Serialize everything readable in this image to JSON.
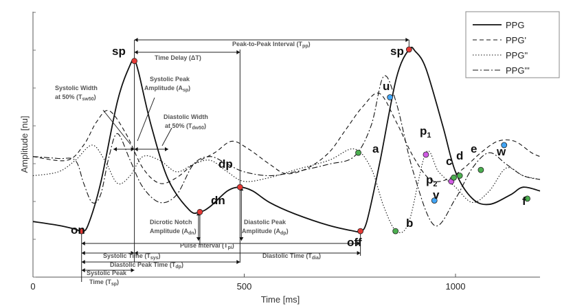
{
  "chart_data": {
    "type": "line",
    "xlabel": "Time [ms]",
    "ylabel": "Amplitude [nu]",
    "xlim": [
      0,
      1200
    ],
    "xticks": [
      "0",
      "500",
      "1000"
    ],
    "legend": {
      "placement": "top-right",
      "entries": [
        "PPG",
        "PPG'",
        "PPG\"",
        "PPG'''"
      ]
    },
    "series": [
      {
        "name": "PPG",
        "style": "solid",
        "x": [
          0,
          60,
          100,
          115,
          130,
          160,
          200,
          230,
          240,
          250,
          280,
          320,
          370,
          395,
          420,
          460,
          490,
          520,
          560,
          620,
          700,
          760,
          775,
          790,
          820,
          860,
          890,
          905,
          930,
          970,
          1000,
          1040,
          1080,
          1130,
          1160,
          1200
        ],
        "y": [
          0.1,
          0.08,
          0.06,
          0.05,
          0.08,
          0.3,
          0.73,
          0.92,
          0.94,
          0.88,
          0.6,
          0.32,
          0.16,
          0.15,
          0.18,
          0.26,
          0.28,
          0.26,
          0.2,
          0.14,
          0.08,
          0.05,
          0.05,
          0.1,
          0.4,
          0.85,
          1.0,
          0.99,
          0.9,
          0.6,
          0.36,
          0.22,
          0.19,
          0.24,
          0.28,
          0.26
        ]
      },
      {
        "name": "PPG'",
        "style": "dashed",
        "x": [
          0,
          80,
          120,
          150,
          180,
          220,
          260,
          300,
          340,
          380,
          430,
          470,
          510,
          560,
          600,
          650,
          700,
          740,
          780,
          820,
          860,
          900,
          940,
          980,
          1020,
          1060,
          1100,
          1140,
          1180,
          1200
        ],
        "y": [
          0.44,
          0.42,
          0.5,
          0.62,
          0.68,
          0.56,
          0.38,
          0.3,
          0.33,
          0.4,
          0.46,
          0.52,
          0.48,
          0.4,
          0.35,
          0.38,
          0.46,
          0.58,
          0.7,
          0.77,
          0.62,
          0.44,
          0.32,
          0.32,
          0.38,
          0.46,
          0.52,
          0.52,
          0.46,
          0.44
        ]
      },
      {
        "name": "PPG\"",
        "style": "dotted",
        "x": [
          0,
          60,
          100,
          140,
          170,
          200,
          230,
          260,
          300,
          340,
          380,
          420,
          460,
          500,
          560,
          620,
          700,
          760,
          800,
          830,
          860,
          890,
          930,
          960,
          1000,
          1040,
          1080,
          1120,
          1160,
          1200
        ],
        "y": [
          0.34,
          0.36,
          0.42,
          0.5,
          0.42,
          0.3,
          0.34,
          0.44,
          0.42,
          0.36,
          0.4,
          0.42,
          0.36,
          0.31,
          0.33,
          0.37,
          0.42,
          0.48,
          0.38,
          0.18,
          0.05,
          0.1,
          0.46,
          0.36,
          0.28,
          0.2,
          0.26,
          0.38,
          0.34,
          0.32
        ]
      },
      {
        "name": "PPG'''",
        "style": "dashdot",
        "x": [
          0,
          60,
          100,
          120,
          140,
          160,
          180,
          200,
          230,
          260,
          300,
          340,
          380,
          420,
          460,
          500,
          560,
          620,
          700,
          760,
          800,
          830,
          860,
          900,
          950,
          1000,
          1040,
          1080,
          1120,
          1160,
          1200
        ],
        "y": [
          0.44,
          0.43,
          0.42,
          0.3,
          0.2,
          0.24,
          0.44,
          0.56,
          0.42,
          0.28,
          0.2,
          0.24,
          0.4,
          0.44,
          0.4,
          0.36,
          0.34,
          0.36,
          0.4,
          0.44,
          0.6,
          0.86,
          0.72,
          0.36,
          0.08,
          0.22,
          0.38,
          0.46,
          0.4,
          0.34,
          0.32
        ]
      }
    ],
    "points": [
      {
        "label": "on",
        "x": 115,
        "y": 0.05,
        "color": "#e53935",
        "size": "large"
      },
      {
        "label": "sp",
        "x": 240,
        "y": 0.94,
        "color": "#e53935",
        "size": "large"
      },
      {
        "label": "dn",
        "x": 395,
        "y": 0.15,
        "color": "#e53935",
        "size": "large"
      },
      {
        "label": "dp",
        "x": 490,
        "y": 0.28,
        "color": "#e53935",
        "size": "large"
      },
      {
        "label": "off",
        "x": 775,
        "y": 0.05,
        "color": "#e53935",
        "size": "large"
      },
      {
        "label": "sp",
        "x": 890,
        "y": 1.0,
        "color": "#e53935",
        "size": "large"
      },
      {
        "label": "a",
        "x": 770,
        "y": 0.46,
        "color": "#4caf50",
        "size": "large"
      },
      {
        "label": "b",
        "x": 858,
        "y": 0.05,
        "color": "#4caf50",
        "size": "large"
      },
      {
        "label": "u",
        "x": 845,
        "y": 0.75,
        "color": "#42a5f5",
        "size": "large"
      },
      {
        "label": "p",
        "sub": "1",
        "x": 930,
        "y": 0.45,
        "color": "#d05ce3",
        "size": "large"
      },
      {
        "label": "p",
        "sub": "2",
        "x": 990,
        "y": 0.31,
        "color": "#d05ce3",
        "size": "large"
      },
      {
        "label": "v",
        "x": 950,
        "y": 0.21,
        "color": "#42a5f5",
        "size": "large"
      },
      {
        "label": "c",
        "x": 996,
        "y": 0.33,
        "color": "#4caf50",
        "size": "large"
      },
      {
        "label": "d",
        "x": 1010,
        "y": 0.34,
        "color": "#4caf50",
        "size": "large"
      },
      {
        "label": "e",
        "x": 1060,
        "y": 0.37,
        "color": "#4caf50",
        "size": "large"
      },
      {
        "label": "w",
        "x": 1115,
        "y": 0.5,
        "color": "#42a5f5",
        "size": "large"
      },
      {
        "label": "f",
        "x": 1170,
        "y": 0.22,
        "color": "#4caf50",
        "size": "large"
      }
    ],
    "annotations": {
      "peak_to_peak": "Peak-to-Peak Interval (T",
      "peak_to_peak_sub": "pp",
      "time_delay": "Time Delay (ΔT)",
      "systolic_width_1": "Systolic Width",
      "systolic_width_2": "at 50% (T",
      "systolic_width_sub": "sw50",
      "systolic_peak_amp_1": "Systolic Peak",
      "systolic_peak_amp_2": "Amplitude (A",
      "systolic_peak_amp_sub": "sp",
      "diastolic_width_1": "Diastolic Width",
      "diastolic_width_2": "at 50% (T",
      "diastolic_width_sub": "dw50",
      "dicrotic_1": "Dicrotic Notch",
      "dicrotic_2": "Amplitude (A",
      "dicrotic_sub": "dn",
      "diastolic_peak_amp_1": "Diastolic Peak",
      "diastolic_peak_amp_2": "Amplitude (A",
      "diastolic_peak_amp_sub": "dp",
      "pulse_interval": "Pulse Interval (T",
      "pulse_interval_sub": "pi",
      "systolic_time": "Systolic Time (T",
      "systolic_time_sub": "sys",
      "diastolic_time": "Diastolic Time (T",
      "diastolic_time_sub": "dia",
      "diastolic_peak_time": "Diastolic Peak Time (T",
      "diastolic_peak_time_sub": "dp",
      "systolic_peak_time_1": "Systolic Peak",
      "systolic_peak_time_2": "Time (T",
      "systolic_peak_time_sub": "sp"
    }
  }
}
